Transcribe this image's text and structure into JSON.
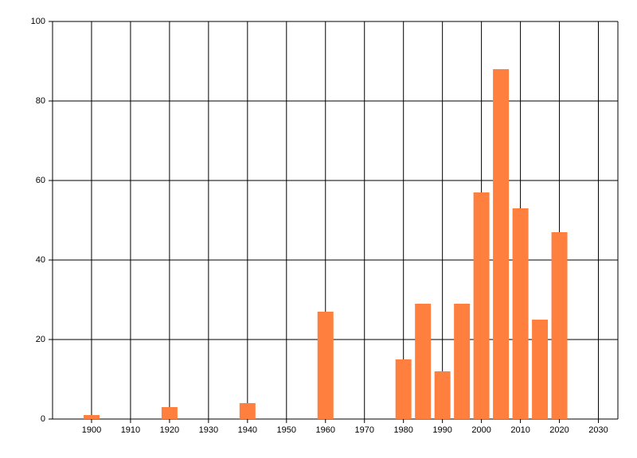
{
  "chart_data": {
    "type": "bar",
    "x": [
      1900,
      1920,
      1940,
      1960,
      1980,
      1985,
      1990,
      1995,
      2000,
      2005,
      2010,
      2015,
      2020
    ],
    "values": [
      1,
      3,
      4,
      27,
      15,
      29,
      12,
      29,
      57,
      88,
      53,
      25,
      47
    ],
    "color": "#ff7f3f",
    "xlim": [
      1890,
      2035
    ],
    "xticks": [
      1900,
      1910,
      1920,
      1930,
      1940,
      1950,
      1960,
      1970,
      1980,
      1990,
      2000,
      2010,
      2020,
      2030
    ],
    "ylim": [
      0,
      100
    ],
    "yticks": [
      0,
      20,
      40,
      60,
      80,
      100
    ],
    "grid": true
  }
}
